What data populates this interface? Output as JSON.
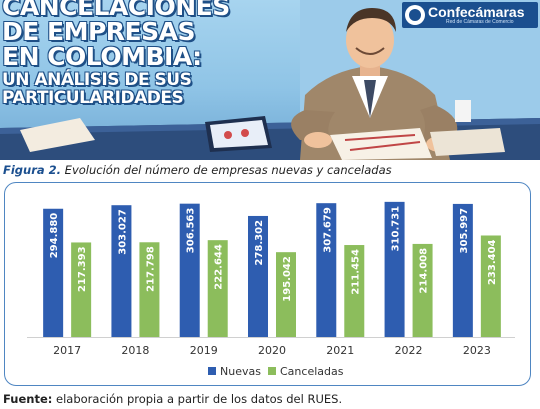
{
  "header": {
    "title_lines": [
      "CANCELACIONES",
      "DE EMPRESAS",
      "EN COLOMBIA:",
      "UN ANÁLISIS DE SUS",
      "PARTICULARIDADES"
    ],
    "logo_name": "Confecámaras",
    "logo_sub": "Red de Cámaras de Comercio"
  },
  "caption": {
    "figure_label": "Figura 2.",
    "text": " Evolución del número de empresas nuevas y canceladas"
  },
  "source": {
    "label": "Fuente:",
    "text": " elaboración propia a partir de los datos del RUES."
  },
  "colors": {
    "nuevas": "#2e5db0",
    "canceladas": "#8cbd5c",
    "frame": "#4f86c2",
    "brand": "#1b4f8f"
  },
  "chart_data": {
    "type": "bar",
    "categories": [
      "2017",
      "2018",
      "2019",
      "2020",
      "2021",
      "2022",
      "2023"
    ],
    "series": [
      {
        "name": "Nuevas",
        "values": [
          294880,
          303027,
          306563,
          278302,
          307679,
          310731,
          305997
        ],
        "labels": [
          "294.880",
          "303.027",
          "306.563",
          "278.302",
          "307.679",
          "310.731",
          "305.997"
        ]
      },
      {
        "name": "Canceladas",
        "values": [
          217393,
          217798,
          222644,
          195042,
          211454,
          214008,
          233404
        ],
        "labels": [
          "217.393",
          "217.798",
          "222.644",
          "195.042",
          "211.454",
          "214.008",
          "233.404"
        ]
      }
    ],
    "ylim": [
      0,
      315000
    ],
    "grid": false,
    "legend_position": "bottom",
    "title": "",
    "xlabel": "",
    "ylabel": ""
  }
}
